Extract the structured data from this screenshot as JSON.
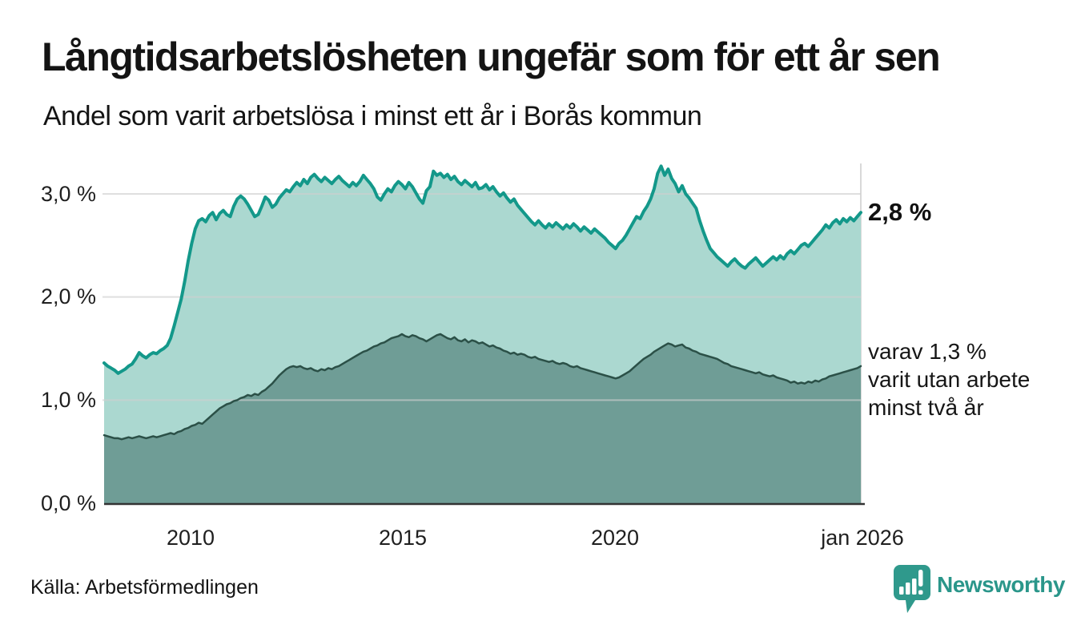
{
  "header": {
    "title": "Långtidsarbetslösheten ungefär som för ett år sen",
    "subtitle": "Andel som varit arbetslösa i minst ett år i Borås kommun"
  },
  "chart_data": {
    "type": "area",
    "x_start": "jan 2008",
    "x_end": "jan 2026",
    "x_interval": "monthly",
    "x_tick_labels": [
      "2010",
      "2015",
      "2020",
      "jan 2026"
    ],
    "y_tick_labels": [
      "0,0 %",
      "1,0 %",
      "2,0 %",
      "3,0 %"
    ],
    "y_ticks": [
      0,
      1,
      2,
      3
    ],
    "ylim": [
      0,
      3.3
    ],
    "grid": "horizontal, plus vertical marker line at latest month (jan 2026)",
    "legend_position": "annotations at right edge of plot",
    "series": [
      {
        "name": "Andel arbetslösa minst ett år",
        "end_label": "2,8 %",
        "end_value": 2.8,
        "values": [
          1.36,
          1.33,
          1.31,
          1.29,
          1.26,
          1.28,
          1.3,
          1.33,
          1.35,
          1.4,
          1.46,
          1.43,
          1.41,
          1.44,
          1.46,
          1.45,
          1.48,
          1.5,
          1.53,
          1.6,
          1.72,
          1.85,
          1.98,
          2.15,
          2.35,
          2.52,
          2.66,
          2.74,
          2.76,
          2.73,
          2.79,
          2.82,
          2.75,
          2.81,
          2.84,
          2.8,
          2.78,
          2.88,
          2.95,
          2.98,
          2.95,
          2.9,
          2.84,
          2.78,
          2.8,
          2.88,
          2.97,
          2.94,
          2.87,
          2.9,
          2.96,
          3.0,
          3.04,
          3.02,
          3.07,
          3.11,
          3.08,
          3.14,
          3.1,
          3.16,
          3.19,
          3.15,
          3.12,
          3.16,
          3.13,
          3.1,
          3.14,
          3.17,
          3.13,
          3.1,
          3.07,
          3.11,
          3.08,
          3.12,
          3.18,
          3.14,
          3.1,
          3.05,
          2.97,
          2.94,
          3.0,
          3.05,
          3.02,
          3.08,
          3.12,
          3.09,
          3.05,
          3.11,
          3.07,
          3.01,
          2.95,
          2.91,
          3.03,
          3.07,
          3.22,
          3.18,
          3.2,
          3.16,
          3.19,
          3.14,
          3.17,
          3.12,
          3.09,
          3.13,
          3.1,
          3.07,
          3.11,
          3.05,
          3.06,
          3.09,
          3.04,
          3.07,
          3.02,
          2.98,
          3.01,
          2.96,
          2.92,
          2.95,
          2.89,
          2.85,
          2.81,
          2.77,
          2.73,
          2.7,
          2.74,
          2.7,
          2.67,
          2.71,
          2.68,
          2.72,
          2.69,
          2.66,
          2.7,
          2.67,
          2.71,
          2.68,
          2.64,
          2.68,
          2.65,
          2.62,
          2.66,
          2.63,
          2.6,
          2.57,
          2.53,
          2.5,
          2.47,
          2.52,
          2.55,
          2.6,
          2.66,
          2.72,
          2.78,
          2.76,
          2.83,
          2.88,
          2.95,
          3.05,
          3.2,
          3.27,
          3.18,
          3.24,
          3.15,
          3.1,
          3.02,
          3.08,
          3.0,
          2.96,
          2.91,
          2.86,
          2.74,
          2.64,
          2.55,
          2.47,
          2.43,
          2.39,
          2.36,
          2.33,
          2.3,
          2.34,
          2.37,
          2.33,
          2.3,
          2.28,
          2.32,
          2.35,
          2.38,
          2.34,
          2.3,
          2.33,
          2.36,
          2.39,
          2.36,
          2.4,
          2.37,
          2.42,
          2.45,
          2.42,
          2.46,
          2.5,
          2.52,
          2.49,
          2.53,
          2.57,
          2.61,
          2.65,
          2.7,
          2.67,
          2.72,
          2.75,
          2.71,
          2.76,
          2.73,
          2.77,
          2.74,
          2.78,
          2.82
        ]
      },
      {
        "name": "Andel arbetslösa minst två år",
        "end_label": "varav 1,3 % varit utan arbete minst två år",
        "end_value": 1.3,
        "values": [
          0.66,
          0.65,
          0.64,
          0.63,
          0.63,
          0.62,
          0.63,
          0.64,
          0.63,
          0.64,
          0.65,
          0.64,
          0.63,
          0.64,
          0.65,
          0.64,
          0.65,
          0.66,
          0.67,
          0.68,
          0.67,
          0.69,
          0.7,
          0.72,
          0.73,
          0.75,
          0.76,
          0.78,
          0.77,
          0.8,
          0.83,
          0.86,
          0.89,
          0.92,
          0.94,
          0.96,
          0.97,
          0.99,
          1.0,
          1.02,
          1.03,
          1.05,
          1.04,
          1.06,
          1.05,
          1.08,
          1.1,
          1.13,
          1.16,
          1.2,
          1.24,
          1.27,
          1.3,
          1.32,
          1.33,
          1.32,
          1.33,
          1.31,
          1.3,
          1.31,
          1.29,
          1.28,
          1.3,
          1.29,
          1.31,
          1.3,
          1.32,
          1.33,
          1.35,
          1.37,
          1.39,
          1.41,
          1.43,
          1.45,
          1.47,
          1.48,
          1.5,
          1.52,
          1.53,
          1.55,
          1.56,
          1.58,
          1.6,
          1.61,
          1.62,
          1.64,
          1.62,
          1.61,
          1.63,
          1.62,
          1.6,
          1.59,
          1.57,
          1.59,
          1.61,
          1.63,
          1.64,
          1.62,
          1.6,
          1.59,
          1.61,
          1.58,
          1.57,
          1.59,
          1.56,
          1.58,
          1.57,
          1.55,
          1.56,
          1.54,
          1.52,
          1.53,
          1.51,
          1.5,
          1.48,
          1.47,
          1.45,
          1.46,
          1.44,
          1.45,
          1.44,
          1.42,
          1.41,
          1.42,
          1.4,
          1.39,
          1.38,
          1.37,
          1.38,
          1.36,
          1.35,
          1.36,
          1.35,
          1.33,
          1.32,
          1.33,
          1.31,
          1.3,
          1.29,
          1.28,
          1.27,
          1.26,
          1.25,
          1.24,
          1.23,
          1.22,
          1.21,
          1.22,
          1.24,
          1.26,
          1.28,
          1.31,
          1.34,
          1.37,
          1.4,
          1.42,
          1.44,
          1.47,
          1.49,
          1.51,
          1.53,
          1.55,
          1.54,
          1.52,
          1.53,
          1.54,
          1.51,
          1.5,
          1.48,
          1.47,
          1.45,
          1.44,
          1.43,
          1.42,
          1.41,
          1.4,
          1.38,
          1.36,
          1.35,
          1.33,
          1.32,
          1.31,
          1.3,
          1.29,
          1.28,
          1.27,
          1.26,
          1.27,
          1.25,
          1.24,
          1.23,
          1.24,
          1.22,
          1.21,
          1.2,
          1.19,
          1.17,
          1.18,
          1.16,
          1.17,
          1.16,
          1.18,
          1.17,
          1.19,
          1.18,
          1.2,
          1.21,
          1.23,
          1.24,
          1.25,
          1.26,
          1.27,
          1.28,
          1.29,
          1.3,
          1.31,
          1.33
        ]
      }
    ]
  },
  "annotations": {
    "series1_value": "2,8 %",
    "series2_line1": "varav 1,3 %",
    "series2_line2": "varit utan arbete",
    "series2_line3": "minst två år"
  },
  "footer": {
    "source": "Källa: Arbetsförmedlingen",
    "logo_text": "Newsworthy"
  },
  "colors": {
    "series1_line": "#13988a",
    "series1_fill": "#abd8d0",
    "series2_line": "#2b5047",
    "series2_fill": "#6f9d96",
    "grid": "#cfcfcf",
    "end_marker_line": "#d9d9d9",
    "axis": "#333333",
    "logo_teal": "#2f998c",
    "text": "#141414"
  }
}
